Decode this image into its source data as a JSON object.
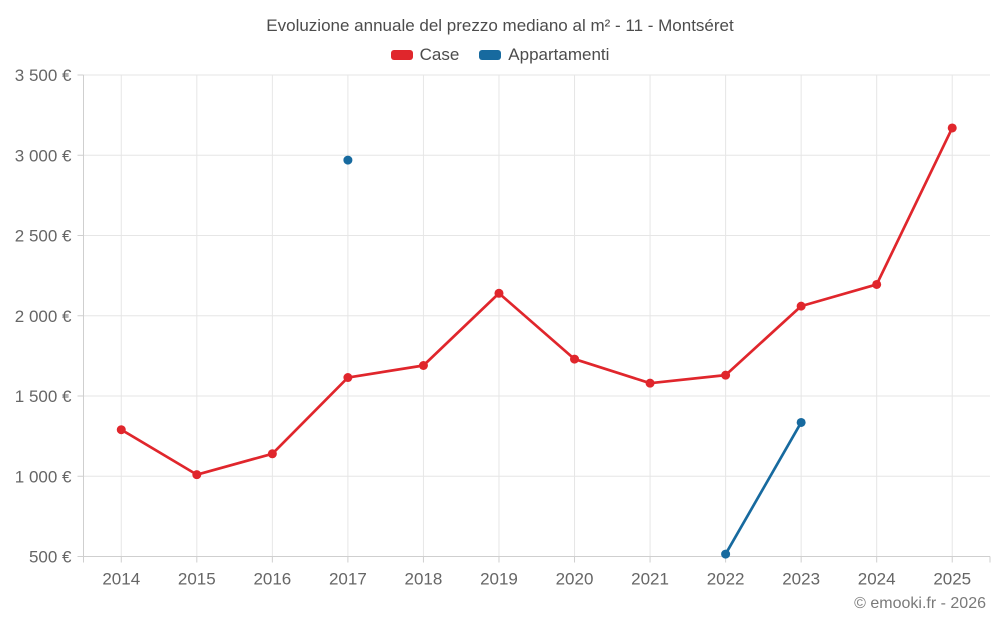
{
  "chart_data": {
    "type": "line",
    "title": "Evoluzione annuale del prezzo mediano al m² - 11 - Montséret",
    "categories": [
      "2014",
      "2015",
      "2016",
      "2017",
      "2018",
      "2019",
      "2020",
      "2021",
      "2022",
      "2023",
      "2024",
      "2025"
    ],
    "series": [
      {
        "name": "Case",
        "color": "#e0262c",
        "values": [
          1290,
          1010,
          1140,
          1615,
          1690,
          2140,
          1730,
          1580,
          1630,
          2060,
          2195,
          3170
        ]
      },
      {
        "name": "Appartamenti",
        "color": "#176a9f",
        "values": [
          null,
          null,
          null,
          2970,
          null,
          null,
          null,
          null,
          515,
          1335,
          null,
          null
        ]
      }
    ],
    "ylim": [
      500,
      3500
    ],
    "y_ticks": [
      500,
      1000,
      1500,
      2000,
      2500,
      3000,
      3500
    ],
    "y_tick_labels": [
      "500 €",
      "1 000 €",
      "1 500 €",
      "2 000 €",
      "2 500 €",
      "3 000 €",
      "3 500 €"
    ],
    "xlabel": "",
    "ylabel": "",
    "grid": true,
    "legend_position": "top"
  },
  "footer": {
    "copyright": "© emooki.fr - 2026"
  },
  "colors": {
    "background": "#ffffff",
    "grid": "#e6e6e6",
    "axis": "#cfcfcf",
    "axis_text": "#666666",
    "title_text": "#4c4c4c",
    "footer_text": "#7a7a7a"
  }
}
